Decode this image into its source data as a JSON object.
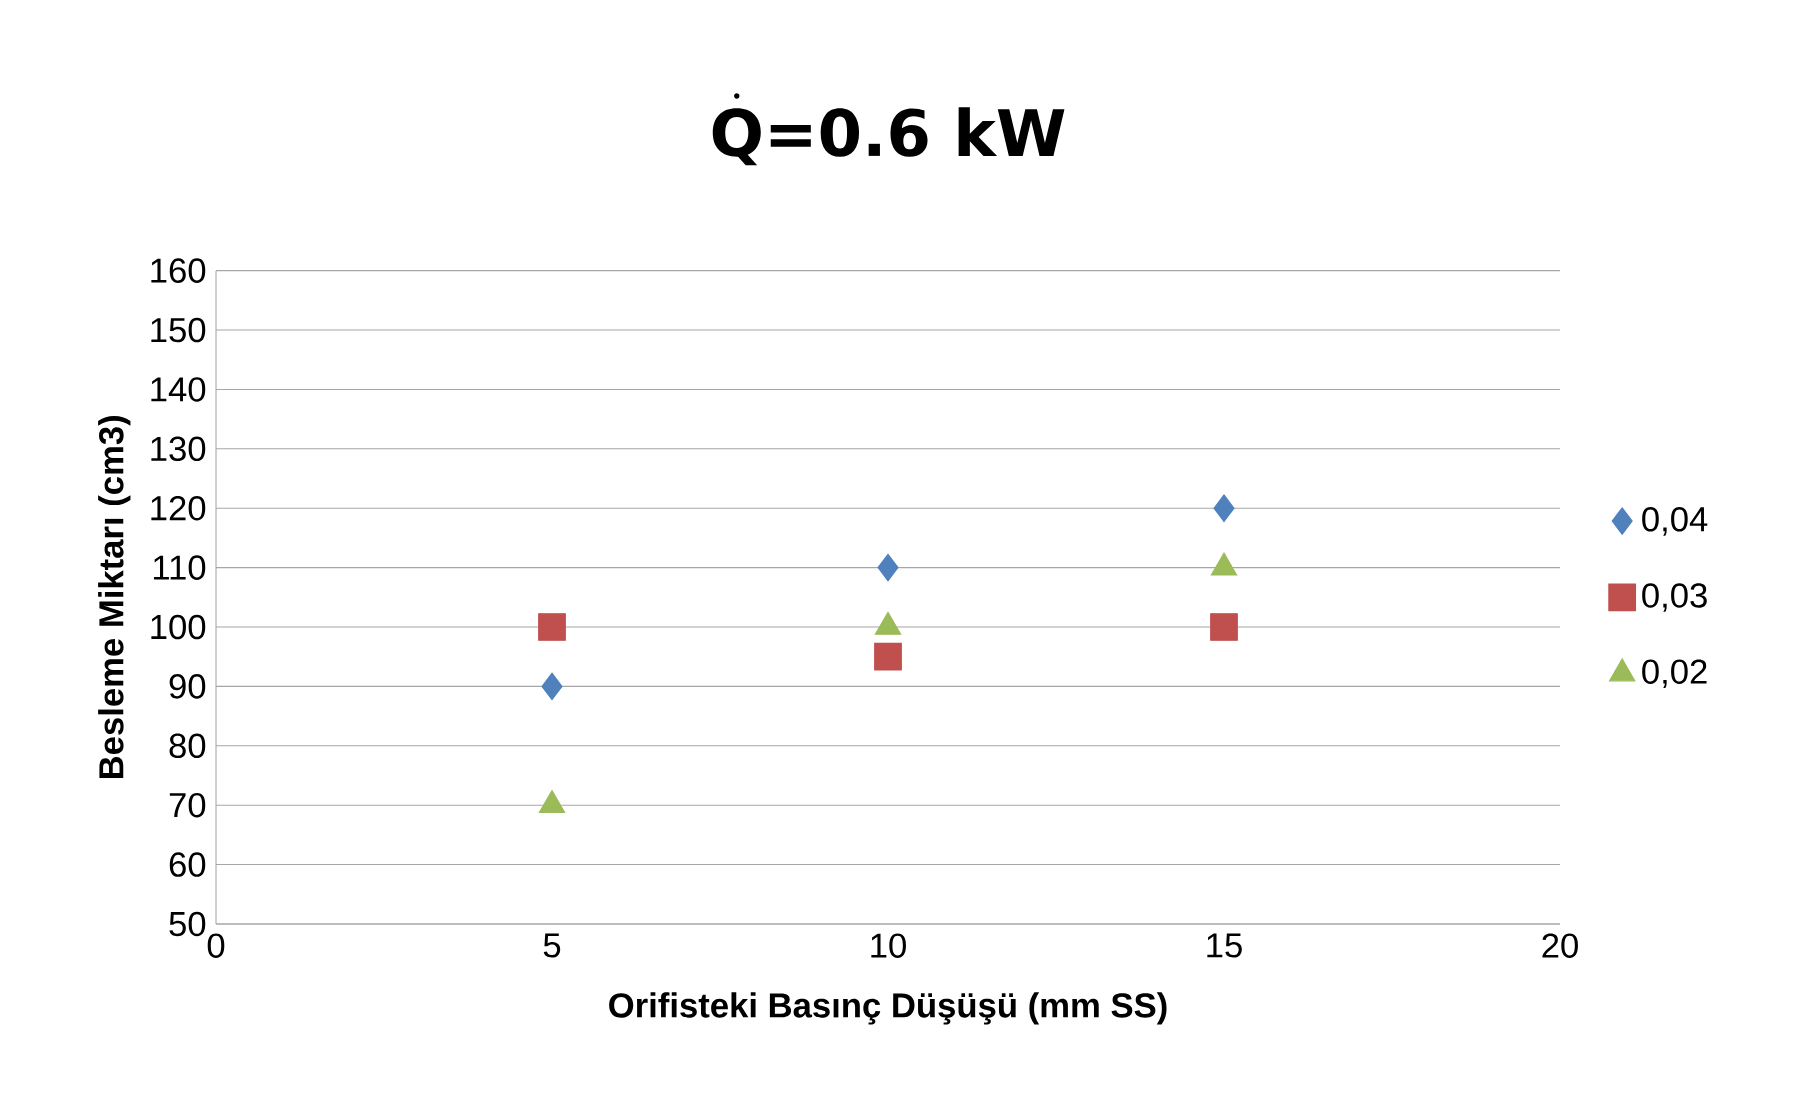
{
  "chart_data": {
    "type": "scatter",
    "title": "\\dot{\\textbf{Q}}\\textbf{=0.6 kW}",
    "xlabel": "Orifisteki Basınç Düşüşü (mm SS)",
    "ylabel": "Besleme Miktarı  (cm3)",
    "x": [
      5,
      10,
      15
    ],
    "series": [
      {
        "name": "0,04",
        "color": "#4f81bd",
        "marker": "diamond",
        "values": [
          90,
          110,
          120
        ]
      },
      {
        "name": "0,03",
        "color": "#c0504d",
        "marker": "square",
        "values": [
          100,
          95,
          100
        ]
      },
      {
        "name": "0,02",
        "color": "#9bbb59",
        "marker": "triangle",
        "values": [
          70,
          100,
          110
        ]
      }
    ],
    "xlim": [
      0,
      20
    ],
    "xticks": [
      0,
      5,
      10,
      15,
      20
    ],
    "ylim": [
      50,
      160
    ],
    "yticks": [
      50,
      60,
      70,
      80,
      90,
      100,
      110,
      120,
      130,
      140,
      150,
      160
    ],
    "grid": "y",
    "legend": "right"
  }
}
